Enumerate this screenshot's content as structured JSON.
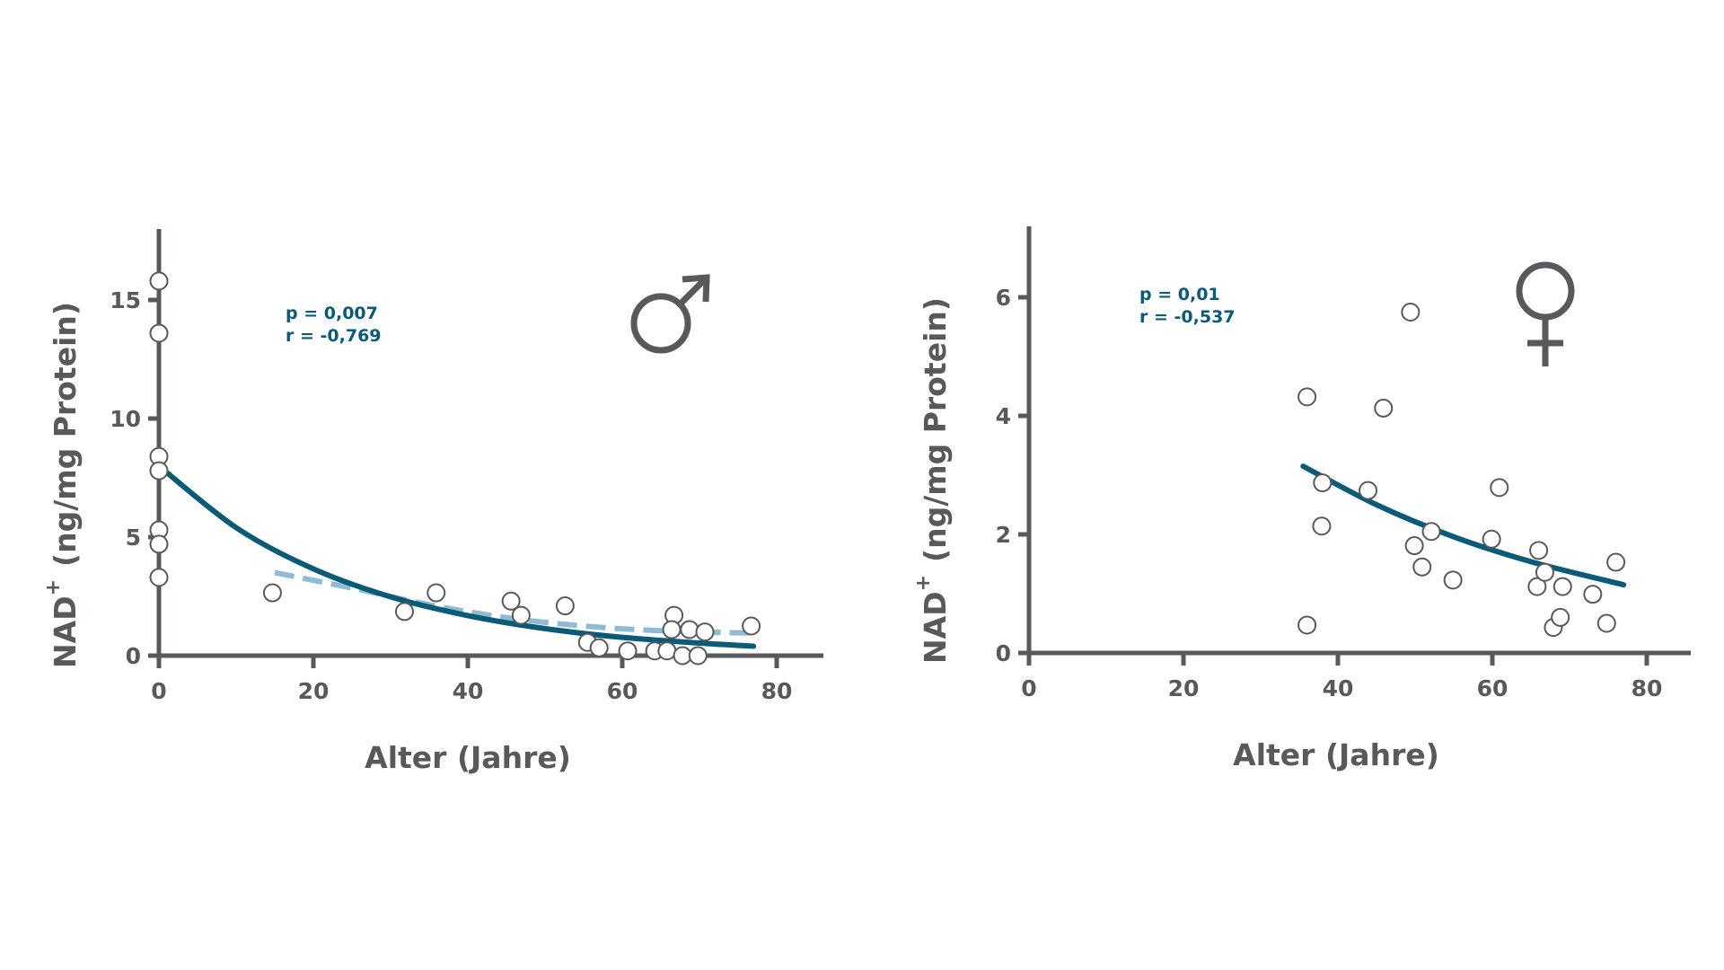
{
  "colors": {
    "axis": "#58595b",
    "fit": "#0b5a78",
    "fit_dashed": "#8fbcd4",
    "stats": "#0b5a78",
    "marker_edge": "#58595b",
    "marker_fill": "#ffffff"
  },
  "chart_data": [
    {
      "type": "scatter",
      "panel": "male",
      "symbol_icon": "male-symbol-icon",
      "xlabel": "Alter (Jahre)",
      "ylabel_main": "NAD",
      "ylabel_sup": "+",
      "ylabel_rest": "(ng/mg Protein)",
      "xlim": [
        0,
        85
      ],
      "ylim": [
        0,
        17.5
      ],
      "xticks": [
        "0",
        "20",
        "40",
        "60",
        "80"
      ],
      "yticks": [
        "0",
        "5",
        "10",
        "15"
      ],
      "grid": false,
      "stats": {
        "p": "p = 0,007",
        "r": "r = -0,769"
      },
      "points": [
        [
          0,
          15.8
        ],
        [
          0,
          13.6
        ],
        [
          0,
          8.4
        ],
        [
          0,
          7.8
        ],
        [
          0,
          5.3
        ],
        [
          0,
          4.7
        ],
        [
          0,
          3.3
        ],
        [
          14.7,
          2.65
        ],
        [
          31.8,
          1.86
        ],
        [
          35.9,
          2.65
        ],
        [
          45.6,
          2.3
        ],
        [
          46.9,
          1.7
        ],
        [
          52.6,
          2.1
        ],
        [
          55.5,
          0.56
        ],
        [
          57,
          0.33
        ],
        [
          60.7,
          0.2
        ],
        [
          64.2,
          0.2
        ],
        [
          65.8,
          0.2
        ],
        [
          66.7,
          1.7
        ],
        [
          66.4,
          1.1
        ],
        [
          67.8,
          0.0
        ],
        [
          68.7,
          1.1
        ],
        [
          69.8,
          0.0
        ],
        [
          70.7,
          1.0
        ],
        [
          76.7,
          1.25
        ]
      ],
      "fit_curve": [
        [
          0,
          8.0
        ],
        [
          10,
          5.4
        ],
        [
          20,
          3.66
        ],
        [
          30,
          2.48
        ],
        [
          40,
          1.69
        ],
        [
          50,
          1.14
        ],
        [
          60,
          0.77
        ],
        [
          70,
          0.53
        ],
        [
          77,
          0.4
        ]
      ],
      "dashed_curve": [
        [
          15,
          3.5
        ],
        [
          25,
          2.85
        ],
        [
          35,
          2.15
        ],
        [
          45,
          1.6
        ],
        [
          55,
          1.25
        ],
        [
          65,
          1.05
        ],
        [
          77,
          0.95
        ]
      ]
    },
    {
      "type": "scatter",
      "panel": "female",
      "symbol_icon": "female-symbol-icon",
      "xlabel": "Alter (Jahre)",
      "ylabel_main": "NAD",
      "ylabel_sup": "+",
      "ylabel_rest": "(ng/mg Protein)",
      "xlim": [
        0,
        86
      ],
      "ylim": [
        0,
        7.2
      ],
      "xticks": [
        "0",
        "20",
        "40",
        "60",
        "80"
      ],
      "yticks": [
        "0",
        "2",
        "4",
        "6"
      ],
      "grid": false,
      "stats": {
        "p": "p = 0,01",
        "r": "r = -0,537"
      },
      "points": [
        [
          36,
          4.32
        ],
        [
          36,
          0.47
        ],
        [
          38,
          2.87
        ],
        [
          37.9,
          2.14
        ],
        [
          43.9,
          2.74
        ],
        [
          45.9,
          4.13
        ],
        [
          49.4,
          5.75
        ],
        [
          49.9,
          1.81
        ],
        [
          50.9,
          1.45
        ],
        [
          52.1,
          2.05
        ],
        [
          54.9,
          1.23
        ],
        [
          59.9,
          1.92
        ],
        [
          60.9,
          2.79
        ],
        [
          66,
          1.73
        ],
        [
          65.8,
          1.12
        ],
        [
          66.8,
          1.36
        ],
        [
          67.9,
          0.43
        ],
        [
          68.8,
          0.6
        ],
        [
          69.1,
          1.12
        ],
        [
          73,
          0.99
        ],
        [
          74.8,
          0.5
        ],
        [
          76,
          1.53
        ]
      ],
      "fit_curve": [
        [
          35.5,
          3.15
        ],
        [
          45,
          2.5
        ],
        [
          55,
          1.96
        ],
        [
          65,
          1.54
        ],
        [
          77,
          1.15
        ]
      ]
    }
  ]
}
